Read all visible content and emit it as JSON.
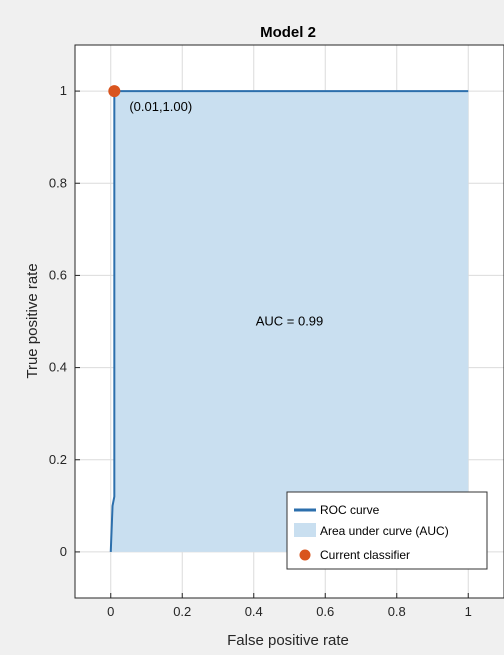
{
  "chart_data": {
    "type": "area",
    "title": "Model 2",
    "xlabel": "False positive rate",
    "ylabel": "True positive rate",
    "xlim": [
      -0.1,
      1.1
    ],
    "ylim": [
      -0.1,
      1.1
    ],
    "xticks": [
      0,
      0.2,
      0.4,
      0.6,
      0.8,
      1
    ],
    "xtick_labels": [
      "0",
      "0.2",
      "0.4",
      "0.6",
      "0.8",
      "1"
    ],
    "yticks": [
      0,
      0.2,
      0.4,
      0.6,
      0.8,
      1
    ],
    "ytick_labels": [
      "0",
      "0.2",
      "0.4",
      "0.6",
      "0.8",
      "1"
    ],
    "grid": true,
    "series": [
      {
        "name": "ROC curve",
        "x": [
          0,
          0.005,
          0.01,
          0.01,
          1
        ],
        "y": [
          0,
          0.1,
          0.12,
          1.0,
          1.0
        ]
      }
    ],
    "auc_label": "AUC = 0.99",
    "current_classifier": {
      "x": 0.01,
      "y": 1.0,
      "label": "(0.01,1.00)"
    },
    "legend": {
      "position": "bottom-right",
      "entries": [
        "ROC curve",
        "Area under curve (AUC)",
        "Current classifier"
      ]
    },
    "colors": {
      "curve": "#2c6fac",
      "area": "#c9dff0",
      "marker": "#d9541d",
      "grid": "#dcdcdc",
      "axes_bg": "#ffffff"
    }
  }
}
